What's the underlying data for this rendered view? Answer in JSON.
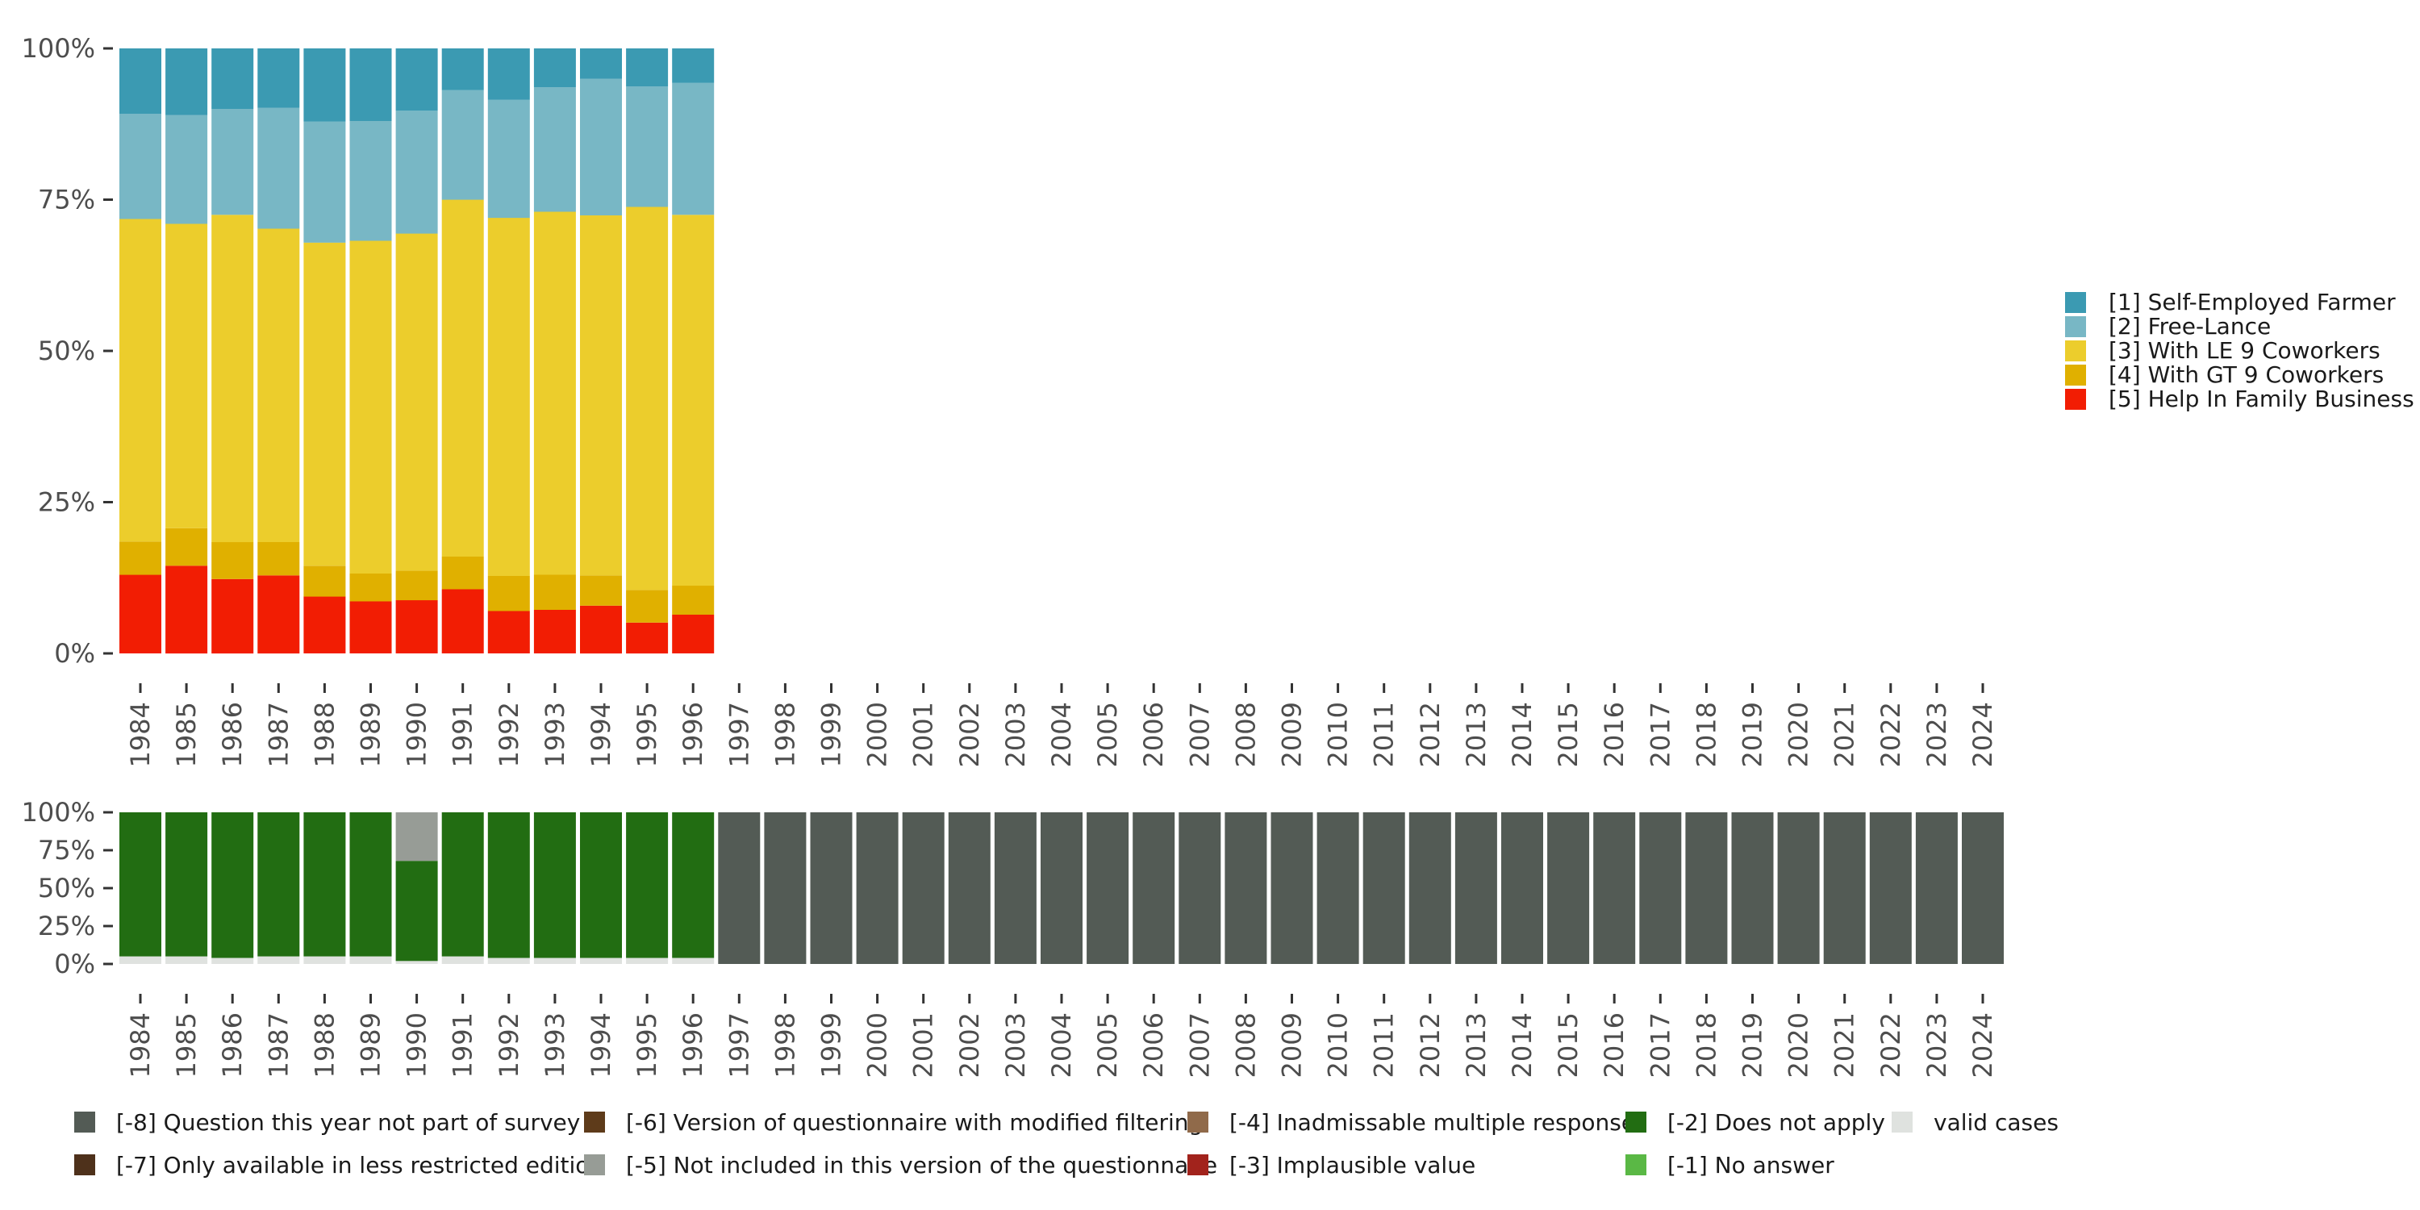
{
  "chart_data": [
    {
      "type": "bar",
      "stacked": true,
      "name": "valid-responses",
      "categories": [
        "1984",
        "1985",
        "1986",
        "1987",
        "1988",
        "1989",
        "1990",
        "1991",
        "1992",
        "1993",
        "1994",
        "1995",
        "1996",
        "1997",
        "1998",
        "1999",
        "2000",
        "2001",
        "2002",
        "2003",
        "2004",
        "2005",
        "2006",
        "2007",
        "2008",
        "2009",
        "2010",
        "2011",
        "2012",
        "2013",
        "2014",
        "2015",
        "2016",
        "2017",
        "2018",
        "2019",
        "2020",
        "2021",
        "2022",
        "2023",
        "2024"
      ],
      "y_ticks": [
        "0%",
        "25%",
        "50%",
        "75%",
        "100%"
      ],
      "ylim": [
        0,
        100
      ],
      "series": [
        {
          "name": "[5] Help In Family Business",
          "color": "#f21d03",
          "values": [
            13,
            14.5,
            12.3,
            12.9,
            9.4,
            8.6,
            8.8,
            10.6,
            7.0,
            7.2,
            7.9,
            5.1,
            6.4,
            null,
            null,
            null,
            null,
            null,
            null,
            null,
            null,
            null,
            null,
            null,
            null,
            null,
            null,
            null,
            null,
            null,
            null,
            null,
            null,
            null,
            null,
            null,
            null,
            null,
            null,
            null,
            null
          ]
        },
        {
          "name": "[4] With GT 9 Coworkers",
          "color": "#e0b000",
          "values": [
            5.5,
            6.2,
            6.1,
            5.5,
            5.1,
            4.6,
            4.9,
            5.4,
            5.8,
            5.8,
            5.0,
            5.4,
            4.8,
            null,
            null,
            null,
            null,
            null,
            null,
            null,
            null,
            null,
            null,
            null,
            null,
            null,
            null,
            null,
            null,
            null,
            null,
            null,
            null,
            null,
            null,
            null,
            null,
            null,
            null,
            null,
            null
          ]
        },
        {
          "name": "[3] With LE 9 Coworkers",
          "color": "#eccd2c",
          "values": [
            53.3,
            50.3,
            54.1,
            51.8,
            53.4,
            55.0,
            55.7,
            59.0,
            59.2,
            60.0,
            59.5,
            63.3,
            61.3,
            null,
            null,
            null,
            null,
            null,
            null,
            null,
            null,
            null,
            null,
            null,
            null,
            null,
            null,
            null,
            null,
            null,
            null,
            null,
            null,
            null,
            null,
            null,
            null,
            null,
            null,
            null,
            null
          ]
        },
        {
          "name": "[2] Free-Lance",
          "color": "#78b7c5",
          "values": [
            17.4,
            18.0,
            17.5,
            20.0,
            20.0,
            19.8,
            20.3,
            18.1,
            19.5,
            20.6,
            22.6,
            19.9,
            21.8,
            null,
            null,
            null,
            null,
            null,
            null,
            null,
            null,
            null,
            null,
            null,
            null,
            null,
            null,
            null,
            null,
            null,
            null,
            null,
            null,
            null,
            null,
            null,
            null,
            null,
            null,
            null,
            null
          ]
        },
        {
          "name": "[1] Self-Employed Farmer",
          "color": "#3b9ab2",
          "values": [
            10.8,
            11.0,
            10.0,
            9.8,
            12.1,
            12.0,
            10.3,
            6.9,
            8.5,
            6.4,
            5.0,
            6.3,
            5.7,
            null,
            null,
            null,
            null,
            null,
            null,
            null,
            null,
            null,
            null,
            null,
            null,
            null,
            null,
            null,
            null,
            null,
            null,
            null,
            null,
            null,
            null,
            null,
            null,
            null,
            null,
            null,
            null
          ]
        }
      ],
      "legend": [
        "[1] Self-Employed Farmer",
        "[2] Free-Lance",
        "[3] With LE 9 Coworkers",
        "[4] With GT 9 Coworkers",
        "[5] Help In Family Business"
      ],
      "legend_position": "right"
    },
    {
      "type": "bar",
      "stacked": true,
      "name": "missing-codes",
      "categories": [
        "1984",
        "1985",
        "1986",
        "1987",
        "1988",
        "1989",
        "1990",
        "1991",
        "1992",
        "1993",
        "1994",
        "1995",
        "1996",
        "1997",
        "1998",
        "1999",
        "2000",
        "2001",
        "2002",
        "2003",
        "2004",
        "2005",
        "2006",
        "2007",
        "2008",
        "2009",
        "2010",
        "2011",
        "2012",
        "2013",
        "2014",
        "2015",
        "2016",
        "2017",
        "2018",
        "2019",
        "2020",
        "2021",
        "2022",
        "2023",
        "2024"
      ],
      "y_ticks": [
        "0%",
        "25%",
        "50%",
        "75%",
        "100%"
      ],
      "ylim": [
        0,
        100
      ],
      "series": [
        {
          "name": "valid cases",
          "color": "#dfe2df",
          "values": [
            5,
            5,
            4,
            5,
            5,
            5,
            2,
            5,
            4,
            4,
            4,
            4,
            4,
            0,
            0,
            0,
            0,
            0,
            0,
            0,
            0,
            0,
            0,
            0,
            0,
            0,
            0,
            0,
            0,
            0,
            0,
            0,
            0,
            0,
            0,
            0,
            0,
            0,
            0,
            0,
            0
          ]
        },
        {
          "name": "[-2] Does not apply",
          "color": "#226d12",
          "values": [
            95,
            95,
            96,
            95,
            95,
            95,
            66,
            95,
            96,
            96,
            96,
            96,
            96,
            0,
            0,
            0,
            0,
            0,
            0,
            0,
            0,
            0,
            0,
            0,
            0,
            0,
            0,
            0,
            0,
            0,
            0,
            0,
            0,
            0,
            0,
            0,
            0,
            0,
            0,
            0,
            0
          ]
        },
        {
          "name": "[-5] Not included in this version of the questionnaire",
          "color": "#979c96",
          "values": [
            0,
            0,
            0,
            0,
            0,
            0,
            32,
            0,
            0,
            0,
            0,
            0,
            0,
            0,
            0,
            0,
            0,
            0,
            0,
            0,
            0,
            0,
            0,
            0,
            0,
            0,
            0,
            0,
            0,
            0,
            0,
            0,
            0,
            0,
            0,
            0,
            0,
            0,
            0,
            0,
            0
          ]
        },
        {
          "name": "[-8] Question this year not part of survey",
          "color": "#535b55",
          "values": [
            0,
            0,
            0,
            0,
            0,
            0,
            0,
            0,
            0,
            0,
            0,
            0,
            0,
            100,
            100,
            100,
            100,
            100,
            100,
            100,
            100,
            100,
            100,
            100,
            100,
            100,
            100,
            100,
            100,
            100,
            100,
            100,
            100,
            100,
            100,
            100,
            100,
            100,
            100,
            100,
            100
          ]
        }
      ],
      "legend": [
        {
          "label": "[-8] Question this year not part of survey",
          "color": "#535b55"
        },
        {
          "label": "[-7] Only available in less restricted edition",
          "color": "#4e311b"
        },
        {
          "label": "[-6] Version of questionnaire with modified filtering",
          "color": "#5e3b1a"
        },
        {
          "label": "[-5] Not included in this version of the questionnaire",
          "color": "#979c96"
        },
        {
          "label": "[-4] Inadmissable multiple response",
          "color": "#906a4a"
        },
        {
          "label": "[-3] Implausible value",
          "color": "#a2231c"
        },
        {
          "label": "[-2] Does not apply",
          "color": "#226d12"
        },
        {
          "label": "[-1] No answer",
          "color": "#5ab845"
        },
        {
          "label": "valid cases",
          "color": "#dfe2df"
        }
      ],
      "legend_position": "bottom"
    }
  ]
}
